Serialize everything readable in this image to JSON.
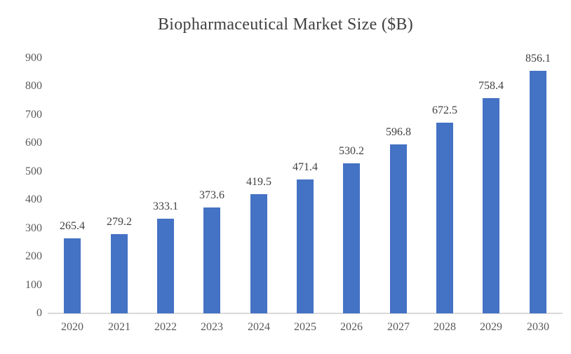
{
  "title": "Biopharmaceutical Market Size ($B)",
  "chart_data": {
    "type": "bar",
    "title": "Biopharmaceutical Market Size ($B)",
    "categories": [
      "2020",
      "2021",
      "2022",
      "2023",
      "2024",
      "2025",
      "2026",
      "2027",
      "2028",
      "2029",
      "2030"
    ],
    "values": [
      265.4,
      279.2,
      333.1,
      373.6,
      419.5,
      471.4,
      530.2,
      596.8,
      672.5,
      758.4,
      856.1
    ],
    "value_labels": [
      "265.4",
      "279.2",
      "333.1",
      "373.6",
      "419.5",
      "471.4",
      "530.2",
      "596.8",
      "672.5",
      "758.4",
      "856.1"
    ],
    "xlabel": "",
    "ylabel": "",
    "ylim": [
      0,
      900
    ],
    "yticks": [
      0,
      100,
      200,
      300,
      400,
      500,
      600,
      700,
      800,
      900
    ],
    "grid": false,
    "legend": "none",
    "data_labels": true
  },
  "colors": {
    "bar": "#4472C4",
    "title_text": "#404040",
    "axis_text": "#595959",
    "data_label_text": "#404040",
    "axis_line": "#D9D9D9"
  }
}
